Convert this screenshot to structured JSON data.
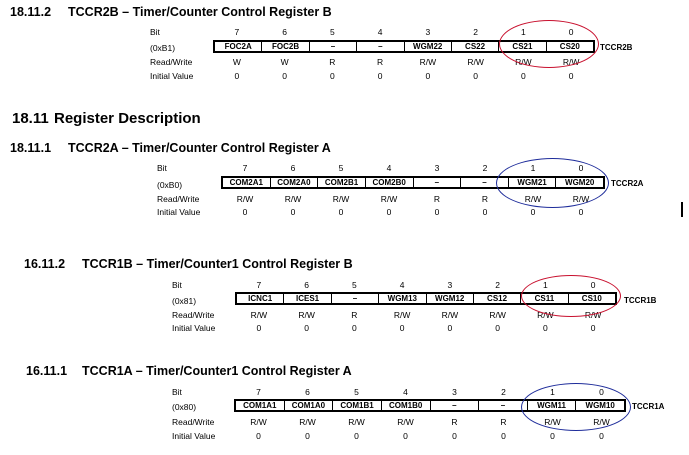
{
  "colors": {
    "ellipse_red": "#c8102e",
    "ellipse_blue": "#1f2d9b"
  },
  "sections": [
    {
      "heading_num": "18.11.2",
      "heading_title": "TCCR2B – Timer/Counter Control Register B",
      "address": "(0xB1)",
      "register": "TCCR2B",
      "bits": [
        "7",
        "6",
        "5",
        "4",
        "3",
        "2",
        "1",
        "0"
      ],
      "cells": [
        "FOC2A",
        "FOC2B",
        "–",
        "–",
        "WGM22",
        "CS22",
        "CS21",
        "CS20"
      ],
      "rw": [
        "W",
        "W",
        "R",
        "R",
        "R/W",
        "R/W",
        "R/W",
        "R/W"
      ],
      "init": [
        "0",
        "0",
        "0",
        "0",
        "0",
        "0",
        "0",
        "0"
      ]
    },
    {
      "heading_num": "18.11.1",
      "heading_title": "TCCR2A – Timer/Counter Control Register A",
      "address": "(0xB0)",
      "register": "TCCR2A",
      "bits": [
        "7",
        "6",
        "5",
        "4",
        "3",
        "2",
        "1",
        "0"
      ],
      "cells": [
        "COM2A1",
        "COM2A0",
        "COM2B1",
        "COM2B0",
        "–",
        "–",
        "WGM21",
        "WGM20"
      ],
      "rw": [
        "R/W",
        "R/W",
        "R/W",
        "R/W",
        "R",
        "R",
        "R/W",
        "R/W"
      ],
      "init": [
        "0",
        "0",
        "0",
        "0",
        "0",
        "0",
        "0",
        "0"
      ]
    },
    {
      "heading_num": "16.11.2",
      "heading_title": "TCCR1B – Timer/Counter1 Control Register B",
      "address": "(0x81)",
      "register": "TCCR1B",
      "bits": [
        "7",
        "6",
        "5",
        "4",
        "3",
        "2",
        "1",
        "0"
      ],
      "cells": [
        "ICNC1",
        "ICES1",
        "–",
        "WGM13",
        "WGM12",
        "CS12",
        "CS11",
        "CS10"
      ],
      "rw": [
        "R/W",
        "R/W",
        "R",
        "R/W",
        "R/W",
        "R/W",
        "R/W",
        "R/W"
      ],
      "init": [
        "0",
        "0",
        "0",
        "0",
        "0",
        "0",
        "0",
        "0"
      ]
    },
    {
      "heading_num": "16.11.1",
      "heading_title": "TCCR1A – Timer/Counter1 Control Register A",
      "address": "(0x80)",
      "register": "TCCR1A",
      "bits": [
        "7",
        "6",
        "5",
        "4",
        "3",
        "2",
        "1",
        "0"
      ],
      "cells": [
        "COM1A1",
        "COM1A0",
        "COM1B1",
        "COM1B0",
        "–",
        "–",
        "WGM11",
        "WGM10"
      ],
      "rw": [
        "R/W",
        "R/W",
        "R/W",
        "R/W",
        "R",
        "R",
        "R/W",
        "R/W"
      ],
      "init": [
        "0",
        "0",
        "0",
        "0",
        "0",
        "0",
        "0",
        "0"
      ]
    }
  ],
  "register_description": {
    "num": "18.11",
    "title": "Register Description"
  },
  "row_labels": {
    "bit": "Bit",
    "rw": "Read/Write",
    "init": "Initial Value"
  }
}
